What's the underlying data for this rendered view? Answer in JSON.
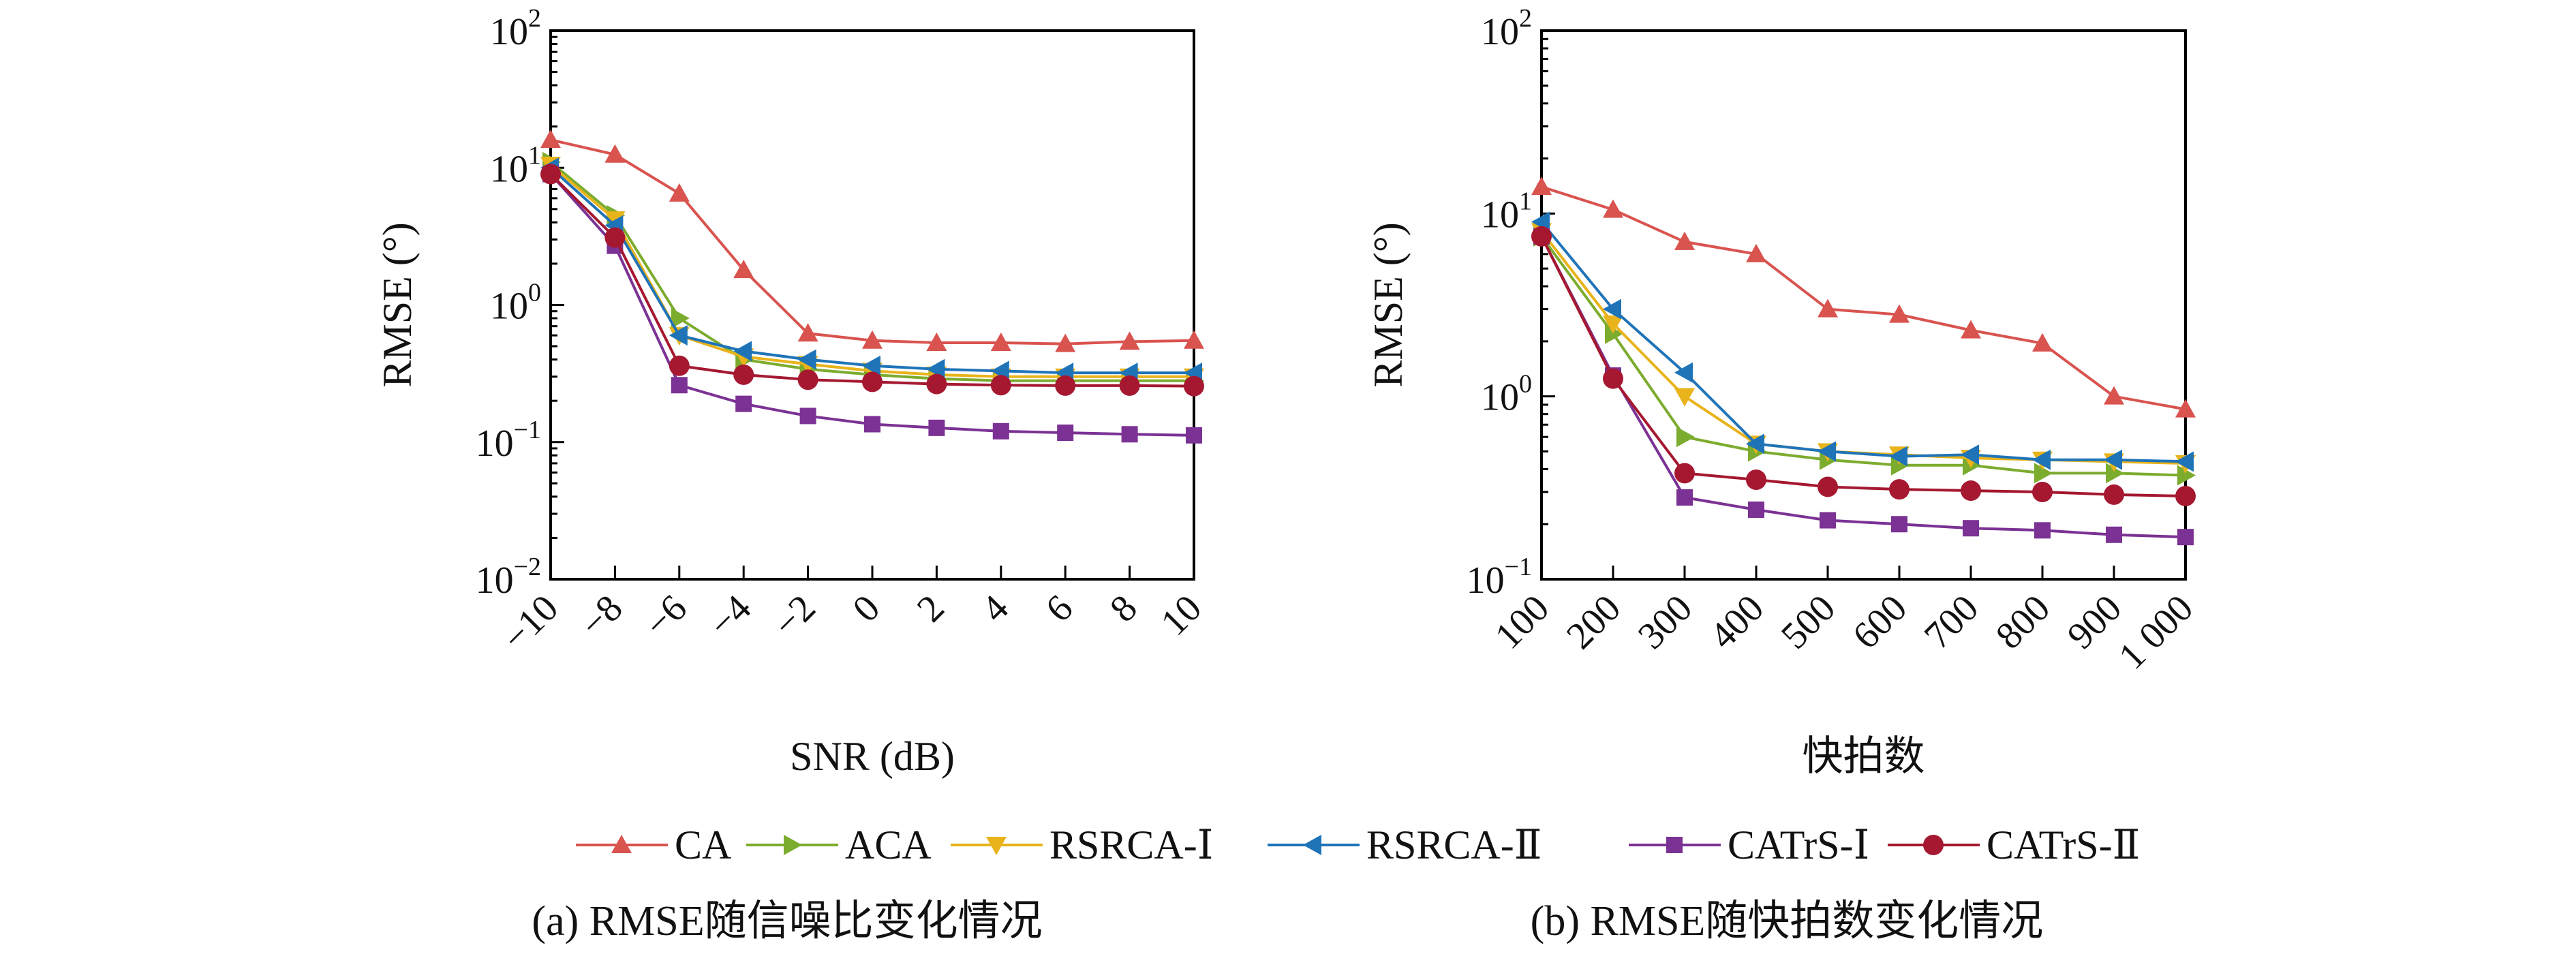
{
  "series_styles": [
    {
      "name": "CA",
      "color": "#d9534f",
      "marker": "triangle-up"
    },
    {
      "name": "ACA",
      "color": "#7cac2e",
      "marker": "triangle-right"
    },
    {
      "name": "RSRCA-Ⅰ",
      "color": "#e8b31b",
      "marker": "triangle-down"
    },
    {
      "name": "RSRCA-Ⅱ",
      "color": "#1f74b8",
      "marker": "triangle-left"
    },
    {
      "name": "CATrS-Ⅰ",
      "color": "#7b3294",
      "marker": "square"
    },
    {
      "name": "CATrS-Ⅱ",
      "color": "#a51830",
      "marker": "circle"
    }
  ],
  "chart_data": [
    {
      "type": "line",
      "caption": "(a) RMSE随信噪比变化情况",
      "xlabel": "SNR (dB)",
      "ylabel": "RMSE (°)",
      "yscale": "log",
      "ylim": [
        0.01,
        100
      ],
      "x": [
        -10,
        -8,
        -6,
        -4,
        -2,
        0,
        2,
        4,
        6,
        8,
        10
      ],
      "xtick_labels": [
        "−10",
        "−8",
        "−6",
        "−4",
        "−2",
        "0",
        "2",
        "4",
        "6",
        "8",
        "10"
      ],
      "ytick_labels": [
        {
          "value": 0.01,
          "base": "10",
          "exp": "−2"
        },
        {
          "value": 0.1,
          "base": "10",
          "exp": "−1"
        },
        {
          "value": 1,
          "base": "10",
          "exp": "0"
        },
        {
          "value": 10,
          "base": "10",
          "exp": "1"
        },
        {
          "value": 100,
          "base": "10",
          "exp": "2"
        }
      ],
      "series": [
        {
          "name": "CA",
          "values": [
            16,
            12.5,
            6.5,
            1.8,
            0.62,
            0.55,
            0.53,
            0.53,
            0.52,
            0.54,
            0.55
          ]
        },
        {
          "name": "ACA",
          "values": [
            11,
            4.5,
            0.8,
            0.4,
            0.34,
            0.31,
            0.29,
            0.28,
            0.28,
            0.28,
            0.28
          ]
        },
        {
          "name": "RSRCA-Ⅰ",
          "values": [
            10.5,
            4.2,
            0.6,
            0.42,
            0.37,
            0.33,
            0.31,
            0.3,
            0.3,
            0.3,
            0.3
          ]
        },
        {
          "name": "RSRCA-Ⅱ",
          "values": [
            10,
            3.8,
            0.6,
            0.46,
            0.4,
            0.36,
            0.34,
            0.33,
            0.32,
            0.32,
            0.32
          ]
        },
        {
          "name": "CATrS-Ⅰ",
          "values": [
            9,
            2.7,
            0.26,
            0.19,
            0.155,
            0.135,
            0.127,
            0.12,
            0.117,
            0.114,
            0.112
          ]
        },
        {
          "name": "CATrS-Ⅱ",
          "values": [
            9,
            3.1,
            0.36,
            0.31,
            0.285,
            0.275,
            0.265,
            0.26,
            0.258,
            0.258,
            0.256
          ]
        }
      ]
    },
    {
      "type": "line",
      "caption": "(b) RMSE随快拍数变化情况",
      "xlabel": "快拍数",
      "ylabel": "RMSE (°)",
      "yscale": "log",
      "ylim": [
        0.1,
        100
      ],
      "x": [
        100,
        200,
        300,
        400,
        500,
        600,
        700,
        800,
        900,
        1000
      ],
      "xtick_labels": [
        "100",
        "200",
        "300",
        "400",
        "500",
        "600",
        "700",
        "800",
        "900",
        "1 000"
      ],
      "ytick_labels": [
        {
          "value": 0.1,
          "base": "10",
          "exp": "−1"
        },
        {
          "value": 1,
          "base": "10",
          "exp": "0"
        },
        {
          "value": 10,
          "base": "10",
          "exp": "1"
        },
        {
          "value": 100,
          "base": "10",
          "exp": "2"
        }
      ],
      "series": [
        {
          "name": "CA",
          "values": [
            14,
            10.5,
            7,
            6,
            3,
            2.8,
            2.3,
            1.95,
            1.0,
            0.85
          ]
        },
        {
          "name": "ACA",
          "values": [
            7.5,
            2.2,
            0.6,
            0.5,
            0.45,
            0.42,
            0.42,
            0.38,
            0.38,
            0.37
          ]
        },
        {
          "name": "RSRCA-Ⅰ",
          "values": [
            8,
            2.5,
            1.0,
            0.55,
            0.5,
            0.48,
            0.46,
            0.45,
            0.44,
            0.43
          ]
        },
        {
          "name": "RSRCA-Ⅱ",
          "values": [
            9,
            3.0,
            1.35,
            0.55,
            0.5,
            0.47,
            0.48,
            0.45,
            0.45,
            0.44
          ]
        },
        {
          "name": "CATrS-Ⅰ",
          "values": [
            7.5,
            1.3,
            0.28,
            0.24,
            0.21,
            0.2,
            0.19,
            0.185,
            0.175,
            0.17
          ]
        },
        {
          "name": "CATrS-Ⅱ",
          "values": [
            7.5,
            1.25,
            0.38,
            0.35,
            0.32,
            0.31,
            0.305,
            0.3,
            0.29,
            0.285
          ]
        }
      ]
    }
  ]
}
